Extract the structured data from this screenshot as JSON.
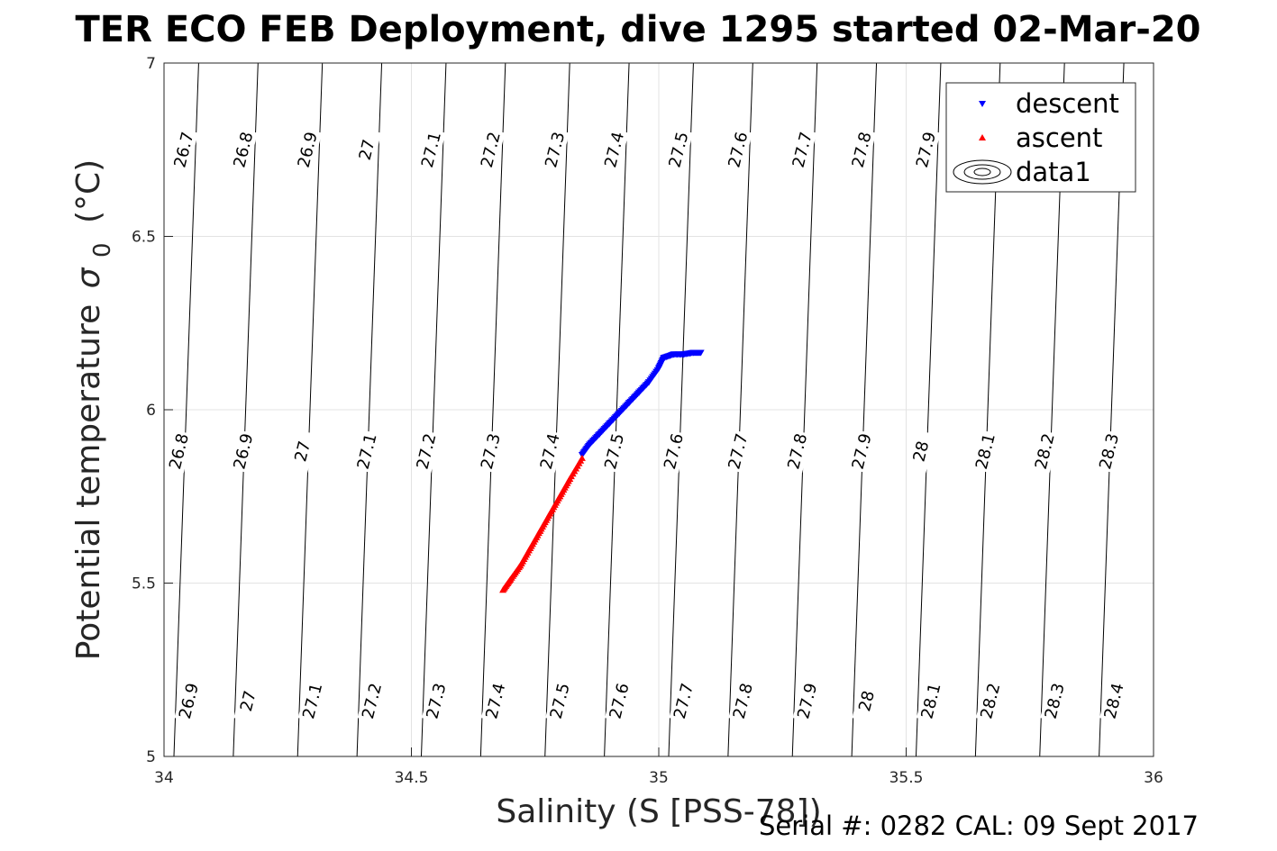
{
  "chart_data": {
    "type": "scatter",
    "title": "TER ECO FEB Deployment, dive 1295 started 02-Mar-20",
    "xlabel": "Salinity (S [PSS-78])",
    "ylabel": "Potential temperature",
    "ylabel_sigma": "σ",
    "ylabel_sub": "0",
    "ylabel_unit": "(°C)",
    "xlim": [
      34,
      36
    ],
    "ylim": [
      5,
      7
    ],
    "xticks": [
      34,
      34.5,
      35,
      35.5,
      36
    ],
    "yticks": [
      5,
      5.5,
      6,
      6.5,
      7
    ],
    "xtick_labels": [
      "34",
      "34.5",
      "35",
      "35.5",
      "36"
    ],
    "ytick_labels": [
      "5",
      "5.5",
      "6",
      "6.5",
      "7"
    ],
    "grid": true,
    "legend_position": "top-right",
    "legend": [
      "descent",
      "ascent",
      "data1"
    ],
    "series": [
      {
        "name": "descent",
        "color": "#0000ff",
        "marker": "triangle-down",
        "x": [
          34.845,
          34.86,
          34.88,
          34.9,
          34.92,
          34.94,
          34.96,
          34.98,
          35.0,
          35.01,
          35.03,
          35.05,
          35.07,
          35.085
        ],
        "y": [
          5.87,
          5.9,
          5.93,
          5.96,
          5.99,
          6.02,
          6.05,
          6.08,
          6.12,
          6.15,
          6.16,
          6.16,
          6.165,
          6.165
        ]
      },
      {
        "name": "ascent",
        "color": "#ff0000",
        "marker": "triangle-up",
        "x": [
          34.685,
          34.7,
          34.72,
          34.74,
          34.76,
          34.78,
          34.8,
          34.82,
          34.845
        ],
        "y": [
          5.48,
          5.51,
          5.55,
          5.6,
          5.65,
          5.7,
          5.75,
          5.8,
          5.86
        ]
      }
    ],
    "contours": [
      {
        "bottom": 34.02,
        "top": 34.07
      },
      {
        "bottom": 34.14,
        "top": 34.19
      },
      {
        "bottom": 34.27,
        "top": 34.32
      },
      {
        "bottom": 34.39,
        "top": 34.44
      },
      {
        "bottom": 34.52,
        "top": 34.57
      },
      {
        "bottom": 34.64,
        "top": 34.69
      },
      {
        "bottom": 34.77,
        "top": 34.82
      },
      {
        "bottom": 34.89,
        "top": 34.94
      },
      {
        "bottom": 35.02,
        "top": 35.07
      },
      {
        "bottom": 35.14,
        "top": 35.19
      },
      {
        "bottom": 35.27,
        "top": 35.32
      },
      {
        "bottom": 35.39,
        "top": 35.44
      },
      {
        "bottom": 35.52,
        "top": 35.57
      },
      {
        "bottom": 35.64,
        "top": 35.69
      },
      {
        "bottom": 35.77,
        "top": 35.82
      },
      {
        "bottom": 35.89,
        "top": 35.94
      },
      {
        "bottom": 36.02,
        "top": 36.07
      },
      {
        "bottom": 33.89,
        "top": 33.94
      }
    ],
    "contour_labels": [
      {
        "text": "26.7",
        "s": 34.04,
        "t": 6.75
      },
      {
        "text": "26.8",
        "s": 34.16,
        "t": 6.75
      },
      {
        "text": "26.9",
        "s": 34.29,
        "t": 6.75
      },
      {
        "text": "27",
        "s": 34.41,
        "t": 6.75
      },
      {
        "text": "27.1",
        "s": 34.54,
        "t": 6.75
      },
      {
        "text": "27.2",
        "s": 34.66,
        "t": 6.75
      },
      {
        "text": "27.3",
        "s": 34.79,
        "t": 6.75
      },
      {
        "text": "27.4",
        "s": 34.91,
        "t": 6.75
      },
      {
        "text": "27.5",
        "s": 35.04,
        "t": 6.75
      },
      {
        "text": "27.6",
        "s": 35.16,
        "t": 6.75
      },
      {
        "text": "27.7",
        "s": 35.29,
        "t": 6.75
      },
      {
        "text": "27.8",
        "s": 35.41,
        "t": 6.75
      },
      {
        "text": "27.9",
        "s": 35.54,
        "t": 6.75
      },
      {
        "text": "26.8",
        "s": 34.03,
        "t": 5.88
      },
      {
        "text": "26.9",
        "s": 34.16,
        "t": 5.88
      },
      {
        "text": "27",
        "s": 34.28,
        "t": 5.88
      },
      {
        "text": "27.1",
        "s": 34.41,
        "t": 5.88
      },
      {
        "text": "27.2",
        "s": 34.53,
        "t": 5.88
      },
      {
        "text": "27.3",
        "s": 34.66,
        "t": 5.88
      },
      {
        "text": "27.4",
        "s": 34.78,
        "t": 5.88
      },
      {
        "text": "27.5",
        "s": 34.91,
        "t": 5.88
      },
      {
        "text": "27.6",
        "s": 35.03,
        "t": 5.88
      },
      {
        "text": "27.7",
        "s": 35.16,
        "t": 5.88
      },
      {
        "text": "27.8",
        "s": 35.28,
        "t": 5.88
      },
      {
        "text": "27.9",
        "s": 35.41,
        "t": 5.88
      },
      {
        "text": "28",
        "s": 35.53,
        "t": 5.88
      },
      {
        "text": "28.1",
        "s": 35.66,
        "t": 5.88
      },
      {
        "text": "28.2",
        "s": 35.78,
        "t": 5.88
      },
      {
        "text": "28.3",
        "s": 35.91,
        "t": 5.88
      },
      {
        "text": "26.9",
        "s": 34.05,
        "t": 5.16
      },
      {
        "text": "27",
        "s": 34.17,
        "t": 5.16
      },
      {
        "text": "27.1",
        "s": 34.3,
        "t": 5.16
      },
      {
        "text": "27.2",
        "s": 34.42,
        "t": 5.16
      },
      {
        "text": "27.3",
        "s": 34.55,
        "t": 5.16
      },
      {
        "text": "27.4",
        "s": 34.67,
        "t": 5.16
      },
      {
        "text": "27.5",
        "s": 34.8,
        "t": 5.16
      },
      {
        "text": "27.6",
        "s": 34.92,
        "t": 5.16
      },
      {
        "text": "27.7",
        "s": 35.05,
        "t": 5.16
      },
      {
        "text": "27.8",
        "s": 35.17,
        "t": 5.16
      },
      {
        "text": "27.9",
        "s": 35.3,
        "t": 5.16
      },
      {
        "text": "28",
        "s": 35.42,
        "t": 5.16
      },
      {
        "text": "28.1",
        "s": 35.55,
        "t": 5.16
      },
      {
        "text": "28.2",
        "s": 35.67,
        "t": 5.16
      },
      {
        "text": "28.3",
        "s": 35.8,
        "t": 5.16
      },
      {
        "text": "28.4",
        "s": 35.92,
        "t": 5.16
      }
    ]
  },
  "footer": {
    "serial": "Serial #: 0282  CAL: 09 Sept 2017"
  }
}
